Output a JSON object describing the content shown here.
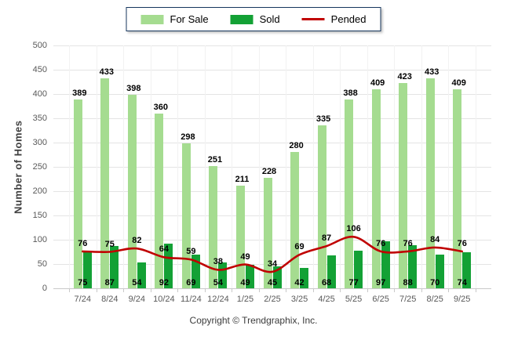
{
  "legend": {
    "items": [
      {
        "label": "For Sale",
        "swatch": "bar",
        "color": "#A5DC90"
      },
      {
        "label": "Sold",
        "swatch": "bar",
        "color": "#13A135"
      },
      {
        "label": "Pended",
        "swatch": "line",
        "color": "#C00000"
      }
    ]
  },
  "axes": {
    "y_title": "Number of Homes",
    "y_ticks": [
      0,
      50,
      100,
      150,
      200,
      250,
      300,
      350,
      400,
      450,
      500
    ]
  },
  "footer": {
    "copyright": "Copyright © Trendgraphix, Inc."
  },
  "colors": {
    "for_sale": "#A5DC90",
    "sold": "#13A135",
    "pended": "#C00000",
    "grid_h": "#E4E4E4",
    "grid_v": "#F2F2F2",
    "axis_line": "#C9C9C9",
    "tick_text": "#595959",
    "value_text": "#000000",
    "legend_border": "#17375E"
  },
  "chart_data": {
    "type": "bar",
    "categories": [
      "7/24",
      "8/24",
      "9/24",
      "10/24",
      "11/24",
      "12/24",
      "1/25",
      "2/25",
      "3/25",
      "4/25",
      "5/25",
      "6/25",
      "7/25",
      "8/25",
      "9/25"
    ],
    "series": [
      {
        "name": "For Sale",
        "type": "bar",
        "color": "#A5DC90",
        "values": [
          389,
          433,
          398,
          360,
          298,
          251,
          211,
          228,
          280,
          335,
          388,
          409,
          423,
          433,
          409
        ]
      },
      {
        "name": "Sold",
        "type": "bar",
        "color": "#13A135",
        "values": [
          75,
          87,
          54,
          92,
          69,
          54,
          49,
          45,
          42,
          68,
          77,
          97,
          88,
          70,
          74
        ]
      },
      {
        "name": "Pended",
        "type": "line",
        "color": "#C00000",
        "values": [
          76,
          75,
          82,
          64,
          59,
          38,
          49,
          34,
          69,
          87,
          106,
          76,
          76,
          84,
          76
        ]
      }
    ],
    "title": "",
    "xlabel": "",
    "ylabel": "Number of Homes",
    "ylim": [
      0,
      500
    ],
    "ytick_step": 50,
    "grid": true,
    "legend_position": "top"
  }
}
